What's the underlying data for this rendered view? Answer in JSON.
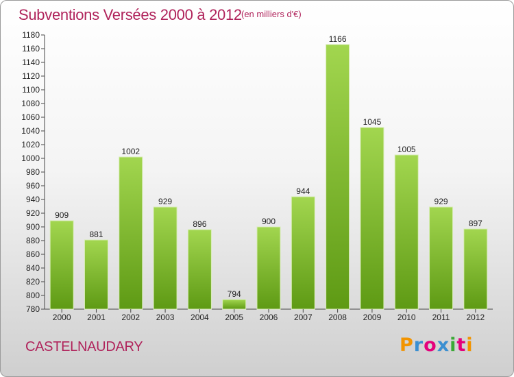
{
  "header": {
    "title": "Subventions Versées 2000 à 2012",
    "subtitle": "(en milliers d'€)"
  },
  "footer": {
    "place": "CASTELNAUDARY",
    "brand": "Proxiti",
    "brand_colors": [
      "#f29400",
      "#3a8fd1",
      "#e4007c",
      "#3a8fd1",
      "#3aa935",
      "#e4007c",
      "#f29400"
    ]
  },
  "colors": {
    "title": "#b0235b",
    "bar_top": "#a2d64f",
    "bar_bottom": "#5e9a14",
    "bar_stroke": "#d8ecb6"
  },
  "chart_data": {
    "type": "bar",
    "title": "Subventions Versées 2000 à 2012",
    "subtitle": "(en milliers d'€)",
    "xlabel": "",
    "ylabel": "",
    "categories": [
      "2000",
      "2001",
      "2002",
      "2003",
      "2004",
      "2005",
      "2006",
      "2007",
      "2008",
      "2009",
      "2010",
      "2011",
      "2012"
    ],
    "values": [
      909,
      881,
      1002,
      929,
      896,
      794,
      900,
      944,
      1166,
      1045,
      1005,
      929,
      897
    ],
    "ylim": [
      780,
      1180
    ],
    "yticks": [
      780,
      800,
      820,
      840,
      860,
      880,
      900,
      920,
      940,
      960,
      980,
      1000,
      1020,
      1040,
      1060,
      1080,
      1100,
      1120,
      1140,
      1160,
      1180
    ],
    "grid": false,
    "legend": "none"
  }
}
